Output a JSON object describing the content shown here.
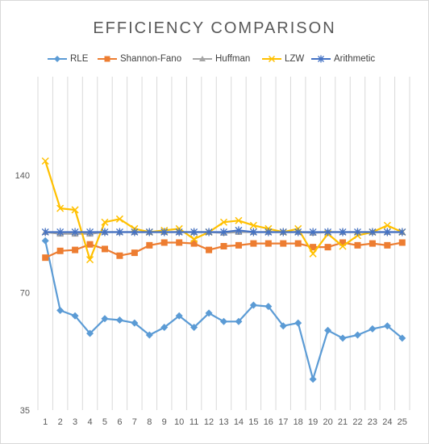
{
  "chart_data": {
    "type": "line",
    "title": "EFFICIENCY COMPARISON",
    "xlabel": "",
    "ylabel": "",
    "categories": [
      "1",
      "2",
      "3",
      "4",
      "5",
      "6",
      "7",
      "8",
      "9",
      "10",
      "11",
      "12",
      "13",
      "14",
      "15",
      "16",
      "17",
      "18",
      "19",
      "20",
      "21",
      "22",
      "23",
      "24",
      "25"
    ],
    "y_scale": "log",
    "ylim": [
      35,
      250
    ],
    "y_ticks": [
      35,
      70,
      140
    ],
    "grid": "vertical",
    "legend_position": "top",
    "series": [
      {
        "name": "RLE",
        "color": "#5b9bd5",
        "marker": "diamond",
        "values": [
          95,
          63,
          61,
          55,
          60,
          59.5,
          58.5,
          54.5,
          57,
          61,
          57,
          62,
          59,
          59,
          65,
          64.5,
          57.5,
          58.5,
          42,
          56,
          53.5,
          54.5,
          56.5,
          57.5,
          53.5
        ]
      },
      {
        "name": "Shannon-Fano",
        "color": "#ed7d31",
        "marker": "square",
        "values": [
          86,
          89.5,
          90,
          93,
          90.5,
          87,
          88.5,
          92.5,
          94,
          94,
          93.5,
          90,
          92,
          92.5,
          93.5,
          93.5,
          93.5,
          93.5,
          91.5,
          91.5,
          94,
          92.5,
          93.5,
          92.5,
          94
        ]
      },
      {
        "name": "Huffman",
        "color": "#a5a5a5",
        "marker": "triangle",
        "values": [
          100,
          99,
          99,
          99,
          100,
          100,
          100,
          100,
          100,
          100,
          100,
          100,
          99.5,
          100,
          100,
          100,
          100,
          100,
          99.5,
          100,
          100,
          100,
          100,
          100,
          100
        ]
      },
      {
        "name": "LZW",
        "color": "#ffc000",
        "marker": "x",
        "values": [
          152,
          115,
          114,
          85,
          106,
          108,
          102,
          100,
          101,
          102,
          96,
          100,
          106,
          107,
          104,
          102,
          100,
          102,
          88,
          99,
          92,
          98,
          100,
          104,
          100
        ]
      },
      {
        "name": "Arithmetic",
        "color": "#4472c4",
        "marker": "star",
        "values": [
          100,
          100,
          100,
          100,
          100,
          100,
          100,
          100,
          100,
          100,
          100,
          100,
          100,
          101,
          100,
          100,
          100,
          100,
          100,
          100,
          100,
          100,
          100,
          100,
          100
        ]
      }
    ]
  }
}
